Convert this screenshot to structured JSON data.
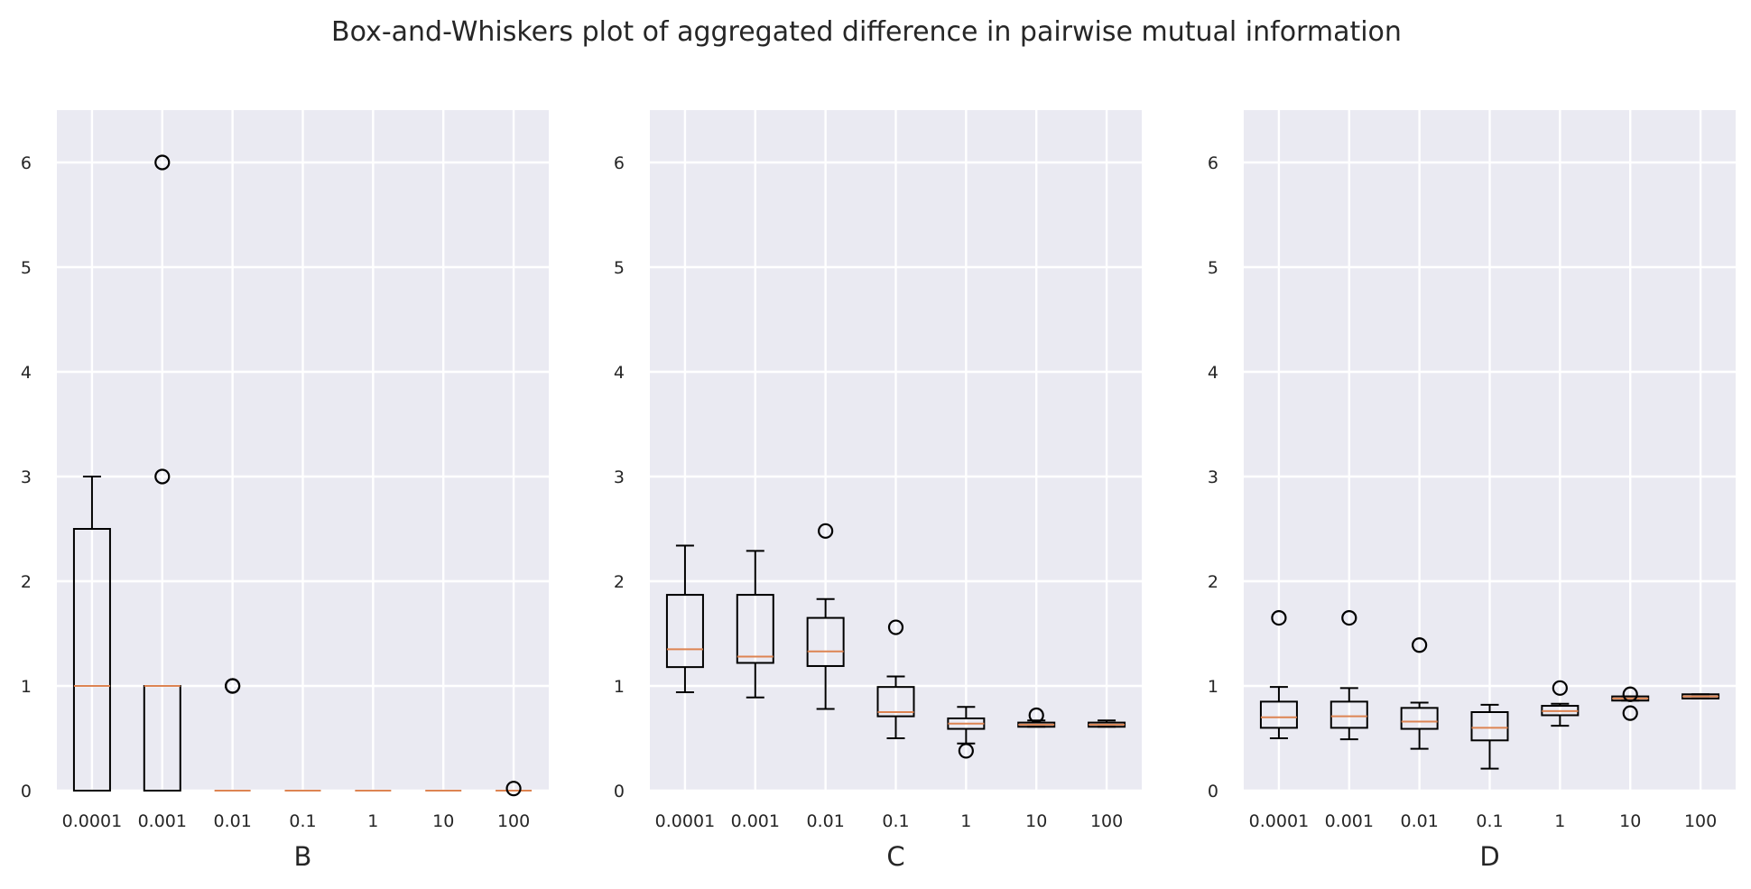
{
  "title": "Box-and-Whiskers plot of aggregated difference in pairwise mutual information",
  "colors": {
    "axes_bg": "#eaeaf2",
    "grid": "#ffffff",
    "box": "#000000",
    "median": "#dd8452",
    "text": "#262626"
  },
  "chart_data": [
    {
      "type": "box",
      "xlabel": "B",
      "ylabel": "",
      "ylim": [
        0,
        6.5
      ],
      "yticks": [
        0,
        1,
        2,
        3,
        4,
        5,
        6
      ],
      "categories": [
        "0.0001",
        "0.001",
        "0.01",
        "0.1",
        "1",
        "10",
        "100"
      ],
      "grid": true,
      "boxes": [
        {
          "whislo": 0,
          "q1": 0,
          "med": 1.0,
          "q3": 2.5,
          "whishi": 3.0,
          "fliers": []
        },
        {
          "whislo": 0,
          "q1": 0,
          "med": 1.0,
          "q3": 1.0,
          "whishi": 1.0,
          "fliers": [
            3.0,
            6.0
          ]
        },
        {
          "whislo": 0,
          "q1": 0,
          "med": 0.0,
          "q3": 0.0,
          "whishi": 0.0,
          "fliers": [
            1.0,
            1.0
          ]
        },
        {
          "whislo": 0,
          "q1": 0,
          "med": 0.0,
          "q3": 0.0,
          "whishi": 0.0,
          "fliers": []
        },
        {
          "whislo": 0,
          "q1": 0,
          "med": 0.0,
          "q3": 0.0,
          "whishi": 0.0,
          "fliers": []
        },
        {
          "whislo": 0,
          "q1": 0,
          "med": 0.0,
          "q3": 0.0,
          "whishi": 0.0,
          "fliers": []
        },
        {
          "whislo": 0,
          "q1": 0,
          "med": 0.0,
          "q3": 0.0,
          "whishi": 0.0,
          "fliers": [
            0.02
          ]
        }
      ]
    },
    {
      "type": "box",
      "xlabel": "C",
      "ylabel": "",
      "ylim": [
        0,
        6.5
      ],
      "yticks": [
        0,
        1,
        2,
        3,
        4,
        5,
        6
      ],
      "categories": [
        "0.0001",
        "0.001",
        "0.01",
        "0.1",
        "1",
        "10",
        "100"
      ],
      "grid": true,
      "boxes": [
        {
          "whislo": 0.94,
          "q1": 1.18,
          "med": 1.35,
          "q3": 1.87,
          "whishi": 2.34,
          "fliers": []
        },
        {
          "whislo": 0.89,
          "q1": 1.22,
          "med": 1.28,
          "q3": 1.87,
          "whishi": 2.29,
          "fliers": []
        },
        {
          "whislo": 0.78,
          "q1": 1.19,
          "med": 1.33,
          "q3": 1.65,
          "whishi": 1.83,
          "fliers": [
            2.48
          ]
        },
        {
          "whislo": 0.5,
          "q1": 0.71,
          "med": 0.75,
          "q3": 0.99,
          "whishi": 1.09,
          "fliers": [
            1.56
          ]
        },
        {
          "whislo": 0.45,
          "q1": 0.59,
          "med": 0.64,
          "q3": 0.69,
          "whishi": 0.8,
          "fliers": [
            0.38
          ]
        },
        {
          "whislo": 0.61,
          "q1": 0.61,
          "med": 0.63,
          "q3": 0.65,
          "whishi": 0.67,
          "fliers": [
            0.72
          ]
        },
        {
          "whislo": 0.61,
          "q1": 0.61,
          "med": 0.63,
          "q3": 0.65,
          "whishi": 0.67,
          "fliers": []
        }
      ]
    },
    {
      "type": "box",
      "xlabel": "D",
      "ylabel": "",
      "ylim": [
        0,
        6.5
      ],
      "yticks": [
        0,
        1,
        2,
        3,
        4,
        5,
        6
      ],
      "categories": [
        "0.0001",
        "0.001",
        "0.01",
        "0.1",
        "1",
        "10",
        "100"
      ],
      "grid": true,
      "boxes": [
        {
          "whislo": 0.5,
          "q1": 0.6,
          "med": 0.7,
          "q3": 0.85,
          "whishi": 0.99,
          "fliers": [
            1.65
          ]
        },
        {
          "whislo": 0.49,
          "q1": 0.6,
          "med": 0.71,
          "q3": 0.85,
          "whishi": 0.98,
          "fliers": [
            1.65
          ]
        },
        {
          "whislo": 0.4,
          "q1": 0.59,
          "med": 0.66,
          "q3": 0.79,
          "whishi": 0.84,
          "fliers": [
            1.39
          ]
        },
        {
          "whislo": 0.21,
          "q1": 0.48,
          "med": 0.6,
          "q3": 0.75,
          "whishi": 0.82,
          "fliers": []
        },
        {
          "whislo": 0.62,
          "q1": 0.72,
          "med": 0.76,
          "q3": 0.81,
          "whishi": 0.83,
          "fliers": [
            0.98
          ]
        },
        {
          "whislo": 0.86,
          "q1": 0.86,
          "med": 0.88,
          "q3": 0.9,
          "whishi": 0.9,
          "fliers": [
            0.92,
            0.74
          ]
        },
        {
          "whislo": 0.88,
          "q1": 0.88,
          "med": 0.9,
          "q3": 0.92,
          "whishi": 0.92,
          "fliers": []
        }
      ]
    }
  ]
}
